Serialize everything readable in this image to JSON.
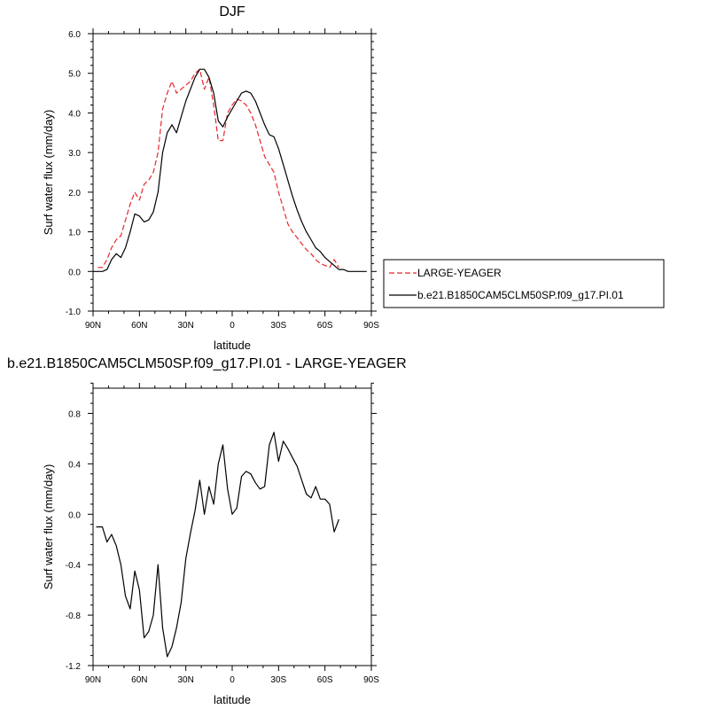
{
  "charts": [
    {
      "type": "line",
      "title": "DJF",
      "xlabel": "latitude",
      "ylabel": "Surf water flux (mm/day)",
      "xlim": [
        -90,
        90
      ],
      "ylim": [
        -1.0,
        6.0
      ],
      "xticks": [
        {
          "v": -90,
          "label": "90N"
        },
        {
          "v": -60,
          "label": "60N"
        },
        {
          "v": -30,
          "label": "30N"
        },
        {
          "v": 0,
          "label": "0"
        },
        {
          "v": 30,
          "label": "30S"
        },
        {
          "v": 60,
          "label": "60S"
        },
        {
          "v": 90,
          "label": "90S"
        }
      ],
      "yticks": [
        {
          "v": -1.0,
          "label": "-1.0"
        },
        {
          "v": 0.0,
          "label": "0.0"
        },
        {
          "v": 1.0,
          "label": "1.0"
        },
        {
          "v": 2.0,
          "label": "2.0"
        },
        {
          "v": 3.0,
          "label": "3.0"
        },
        {
          "v": 4.0,
          "label": "4.0"
        },
        {
          "v": 5.0,
          "label": "5.0"
        },
        {
          "v": 6.0,
          "label": "6.0"
        }
      ],
      "legend_position": "right",
      "series": [
        {
          "name": "LARGE-YEAGER",
          "color": "#e8262a",
          "dash": true,
          "x": [
            -87,
            -84,
            -81,
            -78,
            -75,
            -72,
            -69,
            -66,
            -63,
            -60,
            -57,
            -54,
            -51,
            -48,
            -45,
            -42,
            -39,
            -36,
            -33,
            -30,
            -27,
            -24,
            -21,
            -18,
            -15,
            -12,
            -9,
            -6,
            -3,
            0,
            3,
            6,
            9,
            12,
            15,
            18,
            21,
            24,
            27,
            30,
            33,
            36,
            39,
            42,
            45,
            48,
            51,
            54,
            57,
            60,
            63,
            66,
            69,
            72,
            75,
            78,
            81
          ],
          "y": [
            0.1,
            0.1,
            0.3,
            0.6,
            0.8,
            0.9,
            1.3,
            1.7,
            2.0,
            1.8,
            2.2,
            2.3,
            2.5,
            3.0,
            4.1,
            4.5,
            4.8,
            4.5,
            4.6,
            4.7,
            4.8,
            5.0,
            5.1,
            4.6,
            4.9,
            4.2,
            3.3,
            3.3,
            4.0,
            4.2,
            4.35,
            4.3,
            4.2,
            4.0,
            3.7,
            3.3,
            2.9,
            2.7,
            2.5,
            2.0,
            1.6,
            1.2,
            1.0,
            0.85,
            0.7,
            0.55,
            0.45,
            0.3,
            0.2,
            0.15,
            0.1,
            0.3,
            0.1,
            null,
            null,
            null,
            null
          ]
        },
        {
          "name": "b.e21.B1850CAM5CLM50SP.f09_g17.PI.01",
          "color": "#000000",
          "dash": false,
          "x": [
            -90,
            -87,
            -84,
            -81,
            -78,
            -75,
            -72,
            -69,
            -66,
            -63,
            -60,
            -57,
            -54,
            -51,
            -48,
            -45,
            -42,
            -39,
            -36,
            -33,
            -30,
            -27,
            -24,
            -21,
            -18,
            -15,
            -12,
            -9,
            -6,
            -3,
            0,
            3,
            6,
            9,
            12,
            15,
            18,
            21,
            24,
            27,
            30,
            33,
            36,
            39,
            42,
            45,
            48,
            51,
            54,
            57,
            60,
            63,
            66,
            69,
            72,
            75,
            78,
            81,
            84,
            87,
            90
          ],
          "y": [
            0.0,
            0.0,
            0.0,
            0.05,
            0.3,
            0.45,
            0.35,
            0.6,
            1.0,
            1.45,
            1.4,
            1.25,
            1.3,
            1.5,
            2.0,
            3.0,
            3.5,
            3.7,
            3.5,
            3.9,
            4.3,
            4.6,
            4.9,
            5.1,
            5.1,
            4.9,
            4.5,
            3.8,
            3.65,
            3.9,
            4.1,
            4.3,
            4.5,
            4.55,
            4.5,
            4.3,
            4.0,
            3.7,
            3.45,
            3.4,
            3.1,
            2.7,
            2.3,
            1.9,
            1.55,
            1.25,
            1.0,
            0.8,
            0.6,
            0.5,
            0.35,
            0.25,
            0.15,
            0.05,
            0.05,
            0.0,
            0.0,
            0.0,
            0.0,
            0.0,
            null
          ]
        }
      ]
    },
    {
      "type": "line",
      "title": "b.e21.B1850CAM5CLM50SP.f09_g17.PI.01 - LARGE-YEAGER",
      "xlabel": "latitude",
      "ylabel": "Surf water flux (mm/day)",
      "xlim": [
        -90,
        90
      ],
      "ylim": [
        -1.2,
        1.0
      ],
      "xticks": [
        {
          "v": -90,
          "label": "90N"
        },
        {
          "v": -60,
          "label": "60N"
        },
        {
          "v": -30,
          "label": "30N"
        },
        {
          "v": 0,
          "label": "0"
        },
        {
          "v": 30,
          "label": "30S"
        },
        {
          "v": 60,
          "label": "60S"
        },
        {
          "v": 90,
          "label": "90S"
        }
      ],
      "yticks": [
        {
          "v": -1.2,
          "label": "-1.2"
        },
        {
          "v": -0.8,
          "label": "-0.8"
        },
        {
          "v": -0.4,
          "label": "-0.4"
        },
        {
          "v": 0.0,
          "label": "0.0"
        },
        {
          "v": 0.4,
          "label": "0.4"
        },
        {
          "v": 0.8,
          "label": "0.8"
        }
      ],
      "series": [
        {
          "name": "",
          "color": "#000000",
          "dash": false,
          "x": [
            -88,
            -84,
            -81,
            -78,
            -75,
            -72,
            -69,
            -66,
            -63,
            -60,
            -57,
            -54,
            -51,
            -48,
            -45,
            -42,
            -39,
            -36,
            -33,
            -30,
            -27,
            -24,
            -21,
            -18,
            -15,
            -12,
            -9,
            -6,
            -3,
            0,
            3,
            6,
            9,
            12,
            15,
            18,
            21,
            24,
            27,
            30,
            33,
            36,
            39,
            42,
            45,
            48,
            51,
            54,
            57,
            60,
            63,
            66,
            69,
            72,
            75,
            78,
            81
          ],
          "y": [
            -0.1,
            -0.1,
            -0.22,
            -0.16,
            -0.25,
            -0.4,
            -0.65,
            -0.75,
            -0.45,
            -0.6,
            -0.98,
            -0.93,
            -0.8,
            -0.4,
            -0.9,
            -1.13,
            -1.05,
            -0.9,
            -0.7,
            -0.35,
            -0.15,
            0.03,
            0.27,
            0.0,
            0.22,
            0.08,
            0.4,
            0.55,
            0.2,
            0.0,
            0.05,
            0.3,
            0.34,
            0.32,
            0.25,
            0.2,
            0.22,
            0.55,
            0.65,
            0.42,
            0.58,
            0.52,
            0.45,
            0.38,
            0.27,
            0.16,
            0.13,
            0.22,
            0.12,
            0.12,
            0.08,
            -0.14,
            -0.04,
            null,
            null,
            null,
            null
          ]
        }
      ]
    }
  ]
}
